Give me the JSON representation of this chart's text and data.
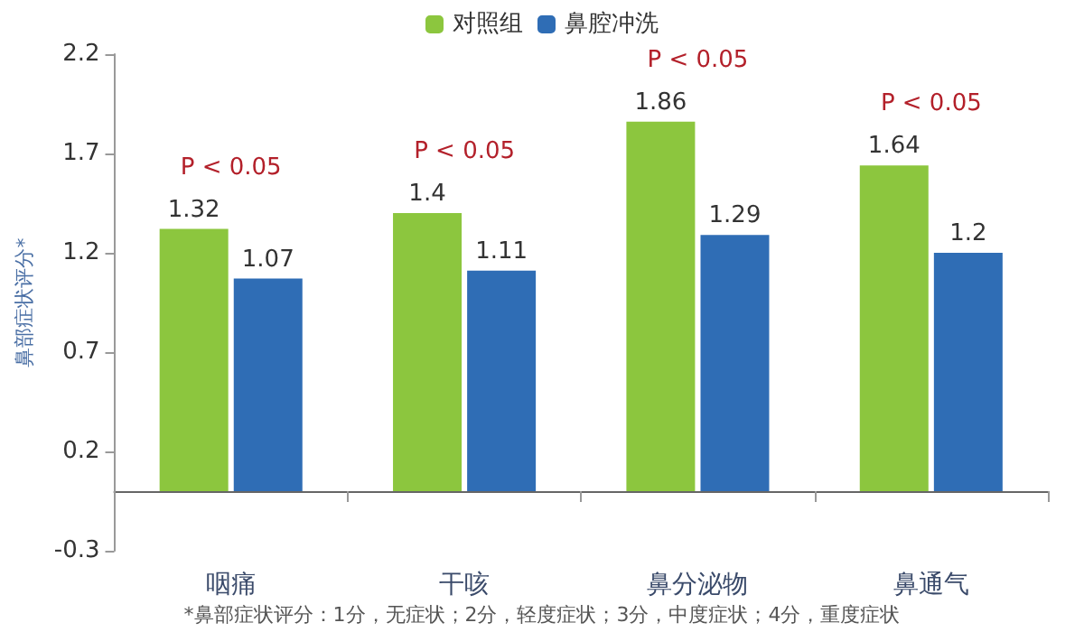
{
  "chart_data": {
    "type": "bar",
    "ylabel": "鼻部症状评分*",
    "categories": [
      "咽痛",
      "干咳",
      "鼻分泌物",
      "鼻通气"
    ],
    "series": [
      {
        "name": "对照组",
        "color": "#8cc63e",
        "values": [
          1.32,
          1.4,
          1.86,
          1.64
        ]
      },
      {
        "name": "鼻腔冲洗",
        "color": "#2f6db5",
        "values": [
          1.07,
          1.11,
          1.29,
          1.2
        ]
      }
    ],
    "ylim": [
      -0.3,
      2.2
    ],
    "yticks": [
      -0.3,
      0.2,
      0.7,
      1.2,
      1.7,
      2.2
    ],
    "data_labels": true,
    "grid": false,
    "legend": "top",
    "annotations": [
      "P < 0.05",
      "P < 0.05",
      "P < 0.05",
      "P < 0.05",
      "*鼻部症状评分：1分，无症状；2分，轻度症状；3分，中度症状；4分，重度症状"
    ]
  }
}
